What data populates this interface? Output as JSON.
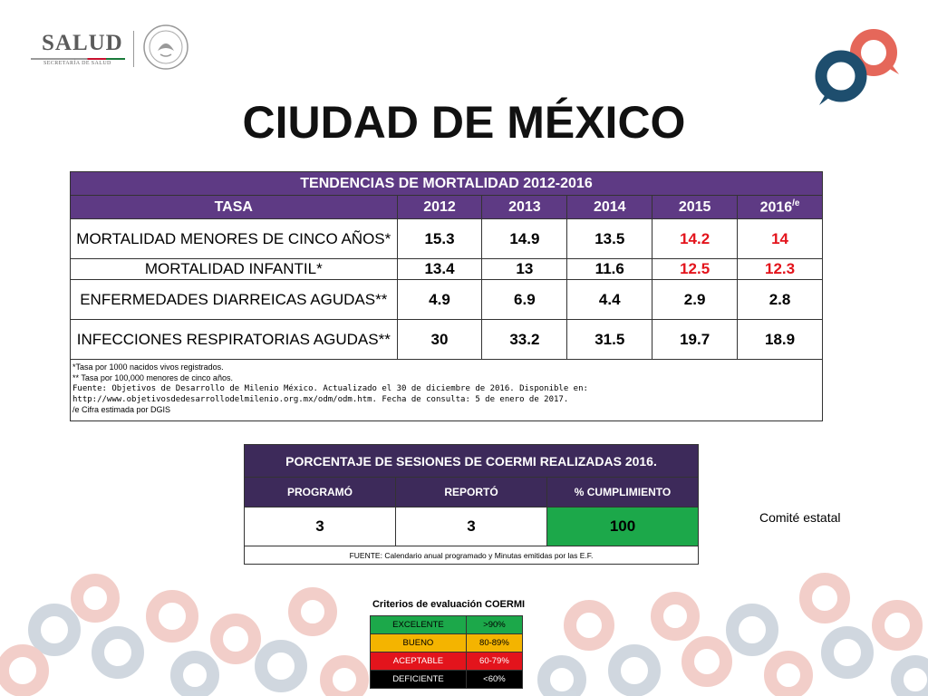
{
  "header": {
    "logo_salud": "SALUD",
    "logo_salud_sub": "SECRETARÍA DE SALUD",
    "title": "CIUDAD DE MÉXICO"
  },
  "mortality": {
    "title": "TENDENCIAS DE MORTALIDAD 2012-2016",
    "headers": [
      "TASA",
      "2012",
      "2013",
      "2014",
      "2015",
      "2016"
    ],
    "header_last_sup": "/e",
    "rows": [
      {
        "label": "MORTALIDAD MENORES DE CINCO AÑOS*",
        "values": [
          "15.3",
          "14.9",
          "13.5",
          "14.2",
          "14"
        ]
      },
      {
        "label": "MORTALIDAD INFANTIL*",
        "values": [
          "13.4",
          "13",
          "11.6",
          "12.5",
          "12.3"
        ]
      },
      {
        "label": "ENFERMEDADES DIARREICAS AGUDAS**",
        "values": [
          "4.9",
          "6.9",
          "4.4",
          "2.9",
          "2.8"
        ]
      },
      {
        "label": "INFECCIONES RESPIRATORIAS AGUDAS**",
        "values": [
          "30",
          "33.2",
          "31.5",
          "19.7",
          "18.9"
        ]
      }
    ],
    "estimate_color": "#e3141c",
    "notes": {
      "note1": "*Tasa por 1000 nacidos vivos registrados.",
      "note2": "** Tasa por 100,000 menores de cinco años.",
      "source_label": "Fuente:",
      "source_text": "Fuente: Objetivos de Desarrollo de Milenio México. Actualizado el 30 de diciembre de 2016. Disponible en:",
      "source_url": "http://www.objetivosdedesarrollodelmilenio.org.mx/odm/odm.htm. Fecha de consulta: 5 de enero de 2017.",
      "note3": "/e Cifra estimada por DGIS"
    }
  },
  "coermi": {
    "title": "PORCENTAJE DE SESIONES DE COERMI REALIZADAS 2016.",
    "headers": [
      "PROGRAMÓ",
      "REPORTÓ",
      "% CUMPLIMIENTO"
    ],
    "values": [
      "3",
      "3",
      "100"
    ],
    "source": "FUENTE: Calendario anual programado y Minutas emitidas por las E.F.",
    "compliance_color": "#1ca84a"
  },
  "committee_label": "Comité estatal",
  "criteria": {
    "title": "Criterios de evaluación COERMI",
    "rows": [
      {
        "label": "EXCELENTE",
        "range": ">90%",
        "color": "#1ca84a"
      },
      {
        "label": "BUENO",
        "range": "80-89%",
        "color": "#f4b400"
      },
      {
        "label": "ACEPTABLE",
        "range": "60-79%",
        "color": "#e3141c"
      },
      {
        "label": "DEFICIENTE",
        "range": "<60%",
        "color": "#000000"
      }
    ]
  }
}
